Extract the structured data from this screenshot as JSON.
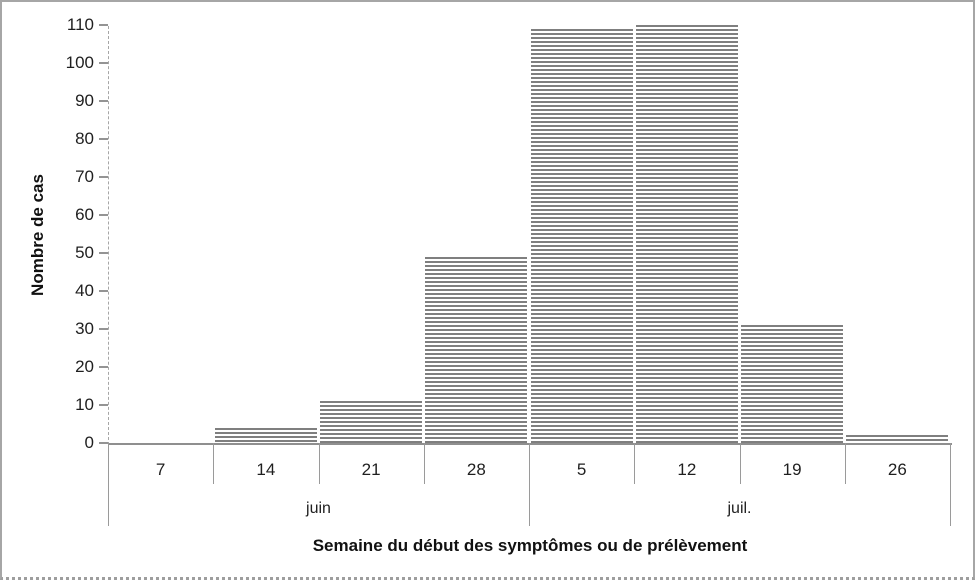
{
  "chart_data": {
    "type": "bar",
    "title": "",
    "ylabel": "Nombre de cas",
    "xlabel": "Semaine du début des symptômes ou de prélèvement",
    "categories": [
      "7",
      "14",
      "21",
      "28",
      "5",
      "12",
      "19",
      "26"
    ],
    "values": [
      0,
      4,
      11,
      49,
      109,
      110,
      31,
      2
    ],
    "month_groups": [
      {
        "label": "juin",
        "start": 0,
        "span": 4
      },
      {
        "label": "juil.",
        "start": 4,
        "span": 4
      }
    ],
    "ylim": [
      0,
      110
    ],
    "ytick_step": 10,
    "ytick_labels": [
      "0",
      "10",
      "20",
      "30",
      "40",
      "50",
      "60",
      "70",
      "80",
      "90",
      "100",
      "110"
    ],
    "grid": "off",
    "legend": "none",
    "bar_pattern": "horizontal-stripes",
    "bar_stripe_color": "#7f7f7f",
    "bar_background": "#ffffff",
    "axis_color": "#8f8f8f",
    "text_color": "#1f1f1f"
  }
}
